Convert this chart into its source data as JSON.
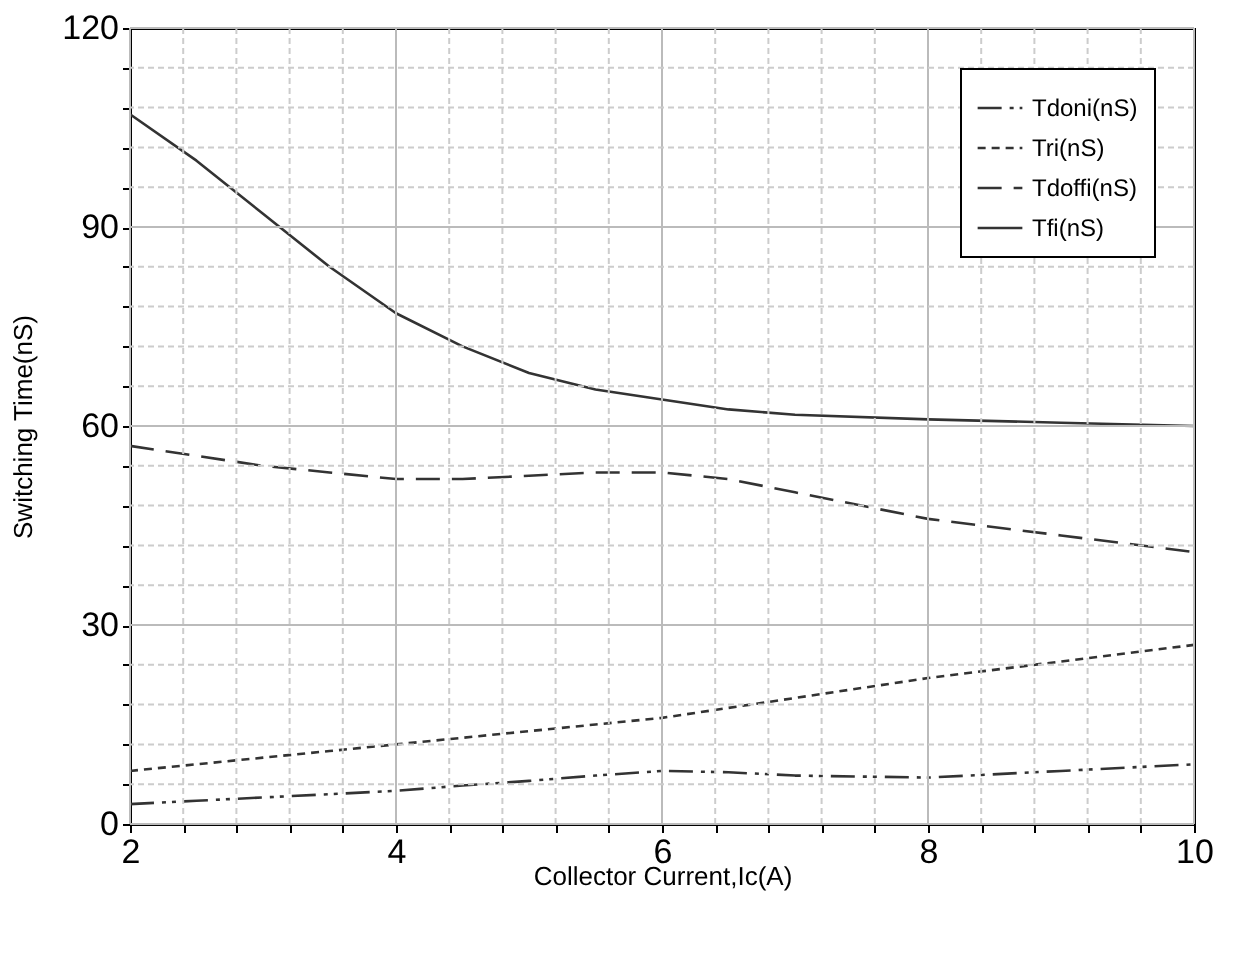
{
  "chart_data": {
    "type": "line",
    "xlabel": "Collector Current,Ic(A)",
    "ylabel": "Switching Time(nS)",
    "x": [
      2,
      2.5,
      3,
      3.5,
      4,
      4.5,
      5,
      5.5,
      6,
      6.5,
      7,
      8,
      9,
      10
    ],
    "series": [
      {
        "name": "Tdoni(nS)",
        "color": "#333333",
        "line_style": "dashdot",
        "values": [
          3,
          3.5,
          4,
          4.5,
          5,
          5.8,
          6.5,
          7.3,
          8,
          7.8,
          7.3,
          7,
          8,
          9
        ]
      },
      {
        "name": "Tri(nS)",
        "color": "#333333",
        "line_style": "dotted",
        "values": [
          8,
          9,
          10,
          11,
          12,
          13,
          14,
          15,
          16,
          17.5,
          19,
          22,
          24.5,
          27
        ]
      },
      {
        "name": "Tdoffi(nS)",
        "color": "#333333",
        "line_style": "dashed",
        "values": [
          57,
          55.5,
          54,
          53,
          52,
          52,
          52.5,
          53,
          53,
          52,
          50,
          46,
          43.5,
          41
        ]
      },
      {
        "name": "Tfi(nS)",
        "color": "#333333",
        "line_style": "solid",
        "values": [
          107,
          100,
          92,
          84,
          77,
          72,
          68,
          65.5,
          64,
          62.5,
          61.7,
          61,
          60.5,
          60
        ]
      }
    ],
    "xlim": [
      2,
      10
    ],
    "ylim": [
      0,
      120
    ],
    "xticks": [
      2,
      {
        "value": 2.4,
        "label": null
      },
      {
        "value": 2.8,
        "label": null
      },
      {
        "value": 3.2,
        "label": null
      },
      {
        "value": 3.6,
        "label": null
      },
      4,
      {
        "value": 4.4,
        "label": null
      },
      {
        "value": 4.8,
        "label": null
      },
      {
        "value": 5.2,
        "label": null
      },
      {
        "value": 5.6,
        "label": null
      },
      6,
      {
        "value": 6.4,
        "label": null
      },
      {
        "value": 6.8,
        "label": null
      },
      {
        "value": 7.2,
        "label": null
      },
      {
        "value": 7.6,
        "label": null
      },
      8,
      {
        "value": 8.4,
        "label": null
      },
      {
        "value": 8.8,
        "label": null
      },
      {
        "value": 9.2,
        "label": null
      },
      {
        "value": 9.6,
        "label": null
      },
      10
    ],
    "yticks": [
      0,
      {
        "value": 6,
        "label": null
      },
      {
        "value": 12,
        "label": null
      },
      {
        "value": 18,
        "label": null
      },
      {
        "value": 24,
        "label": null
      },
      30,
      {
        "value": 36,
        "label": null
      },
      {
        "value": 42,
        "label": null
      },
      {
        "value": 48,
        "label": null
      },
      {
        "value": 54,
        "label": null
      },
      60,
      {
        "value": 66,
        "label": null
      },
      {
        "value": 72,
        "label": null
      },
      {
        "value": 78,
        "label": null
      },
      {
        "value": 84,
        "label": null
      },
      90,
      {
        "value": 96,
        "label": null
      },
      {
        "value": 102,
        "label": null
      },
      {
        "value": 108,
        "label": null
      },
      {
        "value": 114,
        "label": null
      },
      120
    ],
    "grid": true,
    "legend": "top right",
    "marker": "none"
  }
}
